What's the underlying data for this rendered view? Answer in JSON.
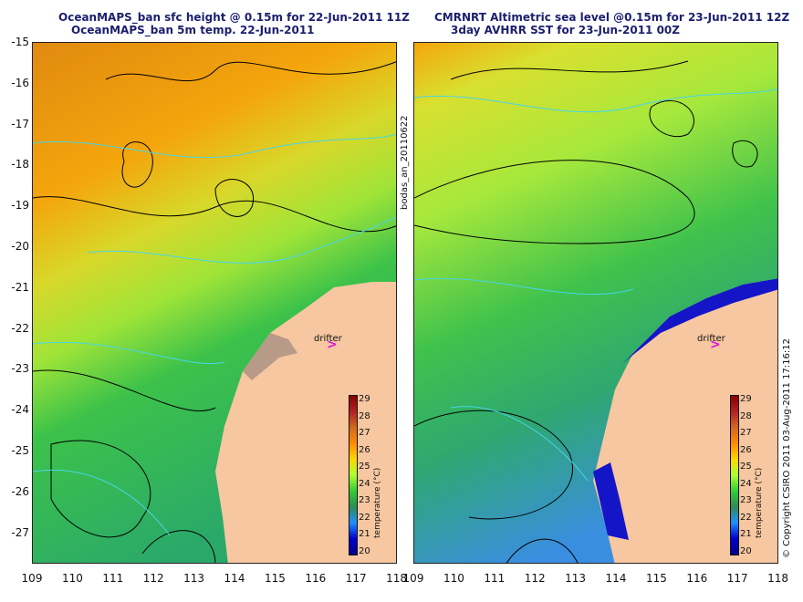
{
  "titles": {
    "left_line1": "OceanMAPS_ban sfc height @ 0.15m for 22-Jun-2011 11Z",
    "left_line2": "OceanMAPS_ban 5m temp. 22-Jun-2011",
    "right_line1": "CMRNRT Altimetric sea level  @0.15m  for 23-Jun-2011 12Z",
    "right_line2": "3day AVHRR SST for 23-Jun-2011 00Z"
  },
  "lat_ticks": [
    "-15",
    "-16",
    "-17",
    "-18",
    "-19",
    "-20",
    "-21",
    "-22",
    "-23",
    "-24",
    "-25",
    "-26",
    "-27"
  ],
  "lon_ticks_left": [
    "109",
    "110",
    "111",
    "112",
    "113",
    "114",
    "115",
    "116",
    "117",
    "118"
  ],
  "lon_ticks_right": [
    "109",
    "110",
    "111",
    "112",
    "113",
    "114",
    "115",
    "116",
    "117",
    "118"
  ],
  "colorbar": {
    "ticks": [
      "29",
      "28",
      "27",
      "26",
      "25",
      "24",
      "23",
      "22",
      "21",
      "20"
    ],
    "label": "temperature (°C)"
  },
  "drifter_label": "drifter",
  "side_label": "bodas_an_20110622",
  "copyright": "© Copyright CSIRO 2011   03-Aug-2011 17:16:12",
  "colors": {
    "land": "#f6c7a0",
    "warm": "#f4a60c",
    "mid": "#8fe03a",
    "cool": "#2fb85c",
    "cold": "#3a8ee0",
    "contour": "#000000",
    "iso": "#48d6e6"
  }
}
